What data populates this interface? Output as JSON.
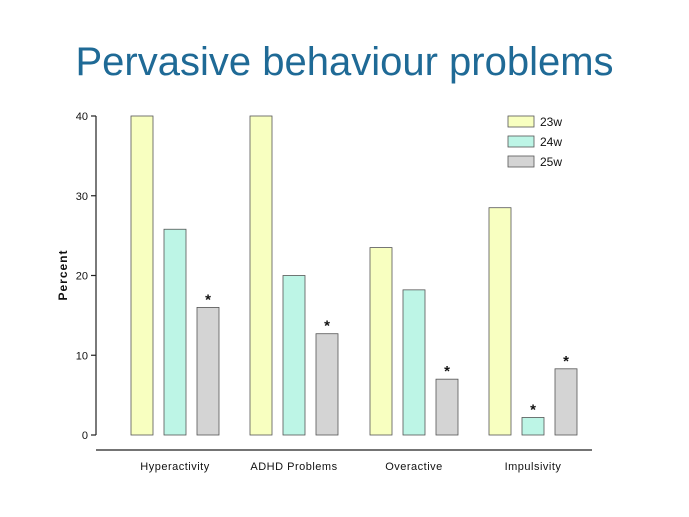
{
  "title": "Pervasive behaviour problems",
  "chart_data": {
    "type": "bar",
    "categories": [
      "Hyperactivity",
      "ADHD Problems",
      "Overactive",
      "Impulsivity"
    ],
    "series": [
      {
        "name": "23w",
        "color": "#f8ffc0",
        "values": [
          40,
          40,
          23.5,
          28.5
        ]
      },
      {
        "name": "24w",
        "color": "#bdf5e6",
        "values": [
          25.8,
          20,
          18.2,
          2.2
        ]
      },
      {
        "name": "25w",
        "color": "#d4d4d4",
        "values": [
          16,
          12.7,
          7,
          8.3
        ]
      }
    ],
    "significance": [
      [
        false,
        false,
        true
      ],
      [
        false,
        false,
        true
      ],
      [
        false,
        false,
        true
      ],
      [
        false,
        true,
        true
      ]
    ],
    "significance_marker": "*",
    "ylabel": "Percent",
    "xlabel": "",
    "ylim": [
      0,
      40
    ],
    "yticks": [
      0,
      10,
      20,
      30,
      40
    ],
    "legend_position": "top-right",
    "grid": false
  }
}
